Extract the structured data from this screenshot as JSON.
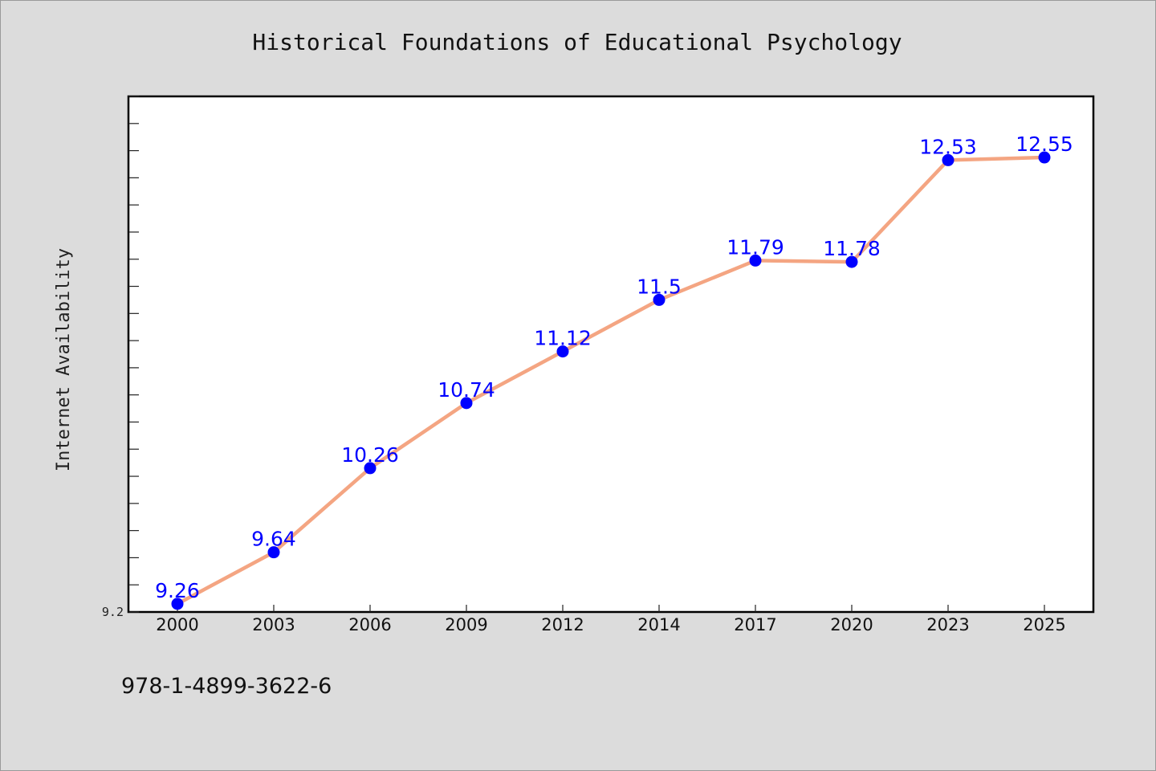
{
  "isbn": "978-1-4899-3622-6",
  "colors": {
    "background": "#dcdcdc",
    "plot_background": "#ffffff",
    "line": "#f4a582",
    "marker": "#0000ff",
    "data_label": "#0000ff"
  },
  "chart_data": {
    "type": "line",
    "title": "Historical Foundations of Educational Psychology",
    "xlabel": "",
    "ylabel": "Internet Availability",
    "categories": [
      "2000",
      "2003",
      "2006",
      "2009",
      "2012",
      "2014",
      "2017",
      "2020",
      "2023",
      "2025"
    ],
    "series": [
      {
        "values": [
          9.26,
          9.64,
          10.26,
          10.74,
          11.12,
          11.5,
          11.79,
          11.78,
          12.53,
          12.55
        ]
      }
    ],
    "data_labels": [
      "9.26",
      "9.64",
      "10.26",
      "10.74",
      "11.12",
      "11.5",
      "11.79",
      "11.78",
      "12.53",
      "12.55"
    ],
    "ylim": [
      9.2,
      13.0
    ],
    "yticks_labeled": [
      "9.2"
    ],
    "y_minor_tick_step": 0.2,
    "grid": false,
    "legend": "none"
  }
}
